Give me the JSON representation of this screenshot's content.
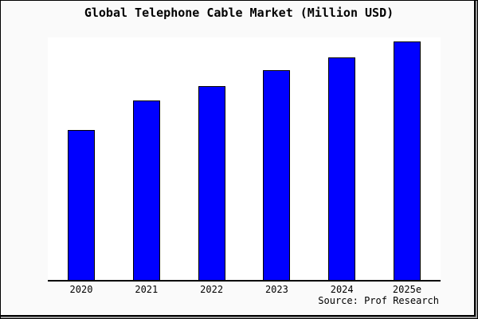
{
  "title": "Global Telephone Cable Market (Million USD)",
  "source": "Source: Prof Research",
  "colors": {
    "bar_fill": "#0000ff",
    "bar_border": "#000000",
    "page_background": "#fafafa",
    "plot_background": "#ffffff",
    "axis_line": "#000000",
    "text": "#000000"
  },
  "chart_data": {
    "type": "bar",
    "title": "Global Telephone Cable Market (Million USD)",
    "categories": [
      "2020",
      "2021",
      "2022",
      "2023",
      "2024",
      "2025e"
    ],
    "values": [
      62.7,
      75.0,
      81.3,
      87.7,
      93.3,
      100.0
    ],
    "xlabel": "",
    "ylabel": "",
    "ylim": [
      0,
      101.5
    ],
    "grid": false,
    "legend": false,
    "y_axis_shown": false,
    "annotation": "Source: Prof Research"
  }
}
